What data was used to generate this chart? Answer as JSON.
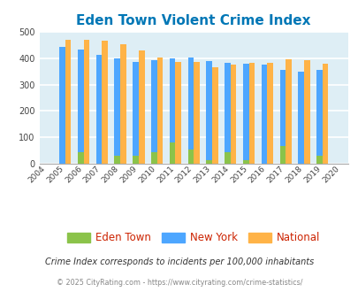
{
  "title": "Eden Town Violent Crime Index",
  "years": [
    2004,
    2005,
    2006,
    2007,
    2008,
    2009,
    2010,
    2011,
    2012,
    2013,
    2014,
    2015,
    2016,
    2017,
    2018,
    2019,
    2020
  ],
  "bar_years": [
    2005,
    2006,
    2007,
    2008,
    2009,
    2010,
    2011,
    2012,
    2013,
    2014,
    2015,
    2016,
    2017,
    2018,
    2019
  ],
  "eden_town": [
    0,
    42,
    0,
    28,
    30,
    42,
    80,
    54,
    13,
    42,
    13,
    0,
    67,
    0,
    30
  ],
  "new_york": [
    445,
    433,
    413,
    400,
    387,
    393,
    400,
    405,
    391,
    383,
    380,
    376,
    356,
    350,
    357
  ],
  "national": [
    470,
    472,
    466,
    455,
    430,
    404,
    387,
    387,
    368,
    375,
    383,
    383,
    395,
    393,
    379
  ],
  "eden_color": "#8bc34a",
  "ny_color": "#4da6ff",
  "nat_color": "#ffb347",
  "bg_color": "#deeef5",
  "title_color": "#0077b6",
  "ylim": [
    0,
    500
  ],
  "yticks": [
    0,
    100,
    200,
    300,
    400,
    500
  ],
  "subtitle": "Crime Index corresponds to incidents per 100,000 inhabitants",
  "footer": "© 2025 CityRating.com - https://www.cityrating.com/crime-statistics/",
  "bar_width": 0.32,
  "legend_label_color": "#cc2200"
}
